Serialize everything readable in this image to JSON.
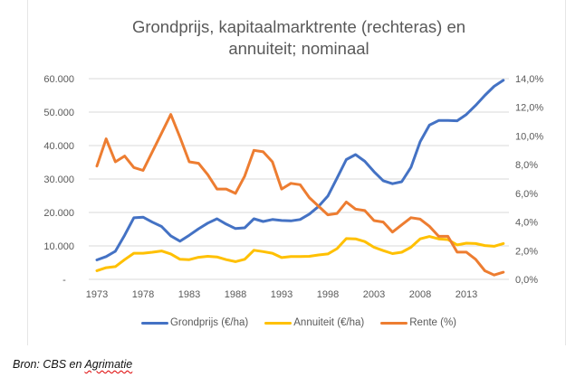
{
  "chart_data": {
    "type": "line",
    "title": "Grondprijs, kapitaalmarktrente (rechteras) en annuiteit; nominaal",
    "title_lines": [
      "Grondprijs, kapitaalmarktrente (rechteras) en",
      "annuiteit; nominaal"
    ],
    "xlabel": "",
    "ylabel": "",
    "y2label": "",
    "x": [
      1973,
      1974,
      1975,
      1976,
      1977,
      1978,
      1979,
      1980,
      1981,
      1982,
      1983,
      1984,
      1985,
      1986,
      1987,
      1988,
      1989,
      1990,
      1991,
      1992,
      1993,
      1994,
      1995,
      1996,
      1997,
      1998,
      1999,
      2000,
      2001,
      2002,
      2003,
      2004,
      2005,
      2006,
      2007,
      2008,
      2009,
      2010,
      2011,
      2012,
      2013,
      2014,
      2015,
      2016,
      2017
    ],
    "x_tick_labels": [
      "1973",
      "1978",
      "1983",
      "1988",
      "1993",
      "1998",
      "2003",
      "2008",
      "2013"
    ],
    "ylim": [
      0,
      60000
    ],
    "y_tick_labels": [
      "-",
      "10.000",
      "20.000",
      "30.000",
      "40.000",
      "50.000",
      "60.000"
    ],
    "y2lim": [
      0,
      14
    ],
    "y2_tick_labels": [
      "0,0%",
      "2,0%",
      "4,0%",
      "6,0%",
      "8,0%",
      "10,0%",
      "12,0%",
      "14,0%"
    ],
    "grid": true,
    "legend_position": "bottom",
    "series": [
      {
        "name": "Grondprijs (€/ha)",
        "axis": "left",
        "color": "#4472C4",
        "values": [
          5800,
          6800,
          8400,
          13200,
          18400,
          18600,
          17100,
          15800,
          13000,
          11400,
          13200,
          15100,
          16800,
          18100,
          16500,
          15200,
          15400,
          18100,
          17300,
          17900,
          17600,
          17500,
          17900,
          19500,
          21800,
          24900,
          30300,
          35800,
          37300,
          35300,
          32200,
          29500,
          28600,
          29200,
          33500,
          41200,
          46100,
          47500,
          47500,
          47400,
          49300,
          52000,
          55000,
          57700,
          59500
        ]
      },
      {
        "name": "Annuiteit (€/ha)",
        "axis": "left",
        "color": "#FFC000",
        "values": [
          2600,
          3500,
          3800,
          5900,
          7800,
          7800,
          8100,
          8500,
          7600,
          6000,
          5900,
          6600,
          6900,
          6700,
          5900,
          5300,
          6000,
          8700,
          8300,
          7800,
          6500,
          6800,
          6800,
          6900,
          7300,
          7600,
          9200,
          12200,
          12100,
          11300,
          9600,
          8600,
          7700,
          8100,
          9600,
          12100,
          12800,
          12100,
          11900,
          10300,
          10800,
          10700,
          10100,
          9900,
          10700
        ]
      },
      {
        "name": "Rente (%)",
        "axis": "right",
        "color": "#ED7D31",
        "values": [
          7.9,
          9.8,
          8.2,
          8.6,
          7.8,
          7.6,
          8.9,
          10.2,
          11.5,
          9.9,
          8.2,
          8.1,
          7.3,
          6.3,
          6.3,
          6.0,
          7.2,
          9.0,
          8.9,
          8.2,
          6.3,
          6.7,
          6.6,
          5.7,
          5.1,
          4.5,
          4.6,
          5.4,
          4.9,
          4.8,
          4.1,
          4.0,
          3.3,
          3.8,
          4.3,
          4.2,
          3.7,
          3.0,
          3.0,
          1.9,
          1.9,
          1.4,
          0.6,
          0.3,
          0.5
        ]
      }
    ],
    "legend": [
      "Grondprijs (€/ha)",
      "Annuiteit (€/ha)",
      "Rente (%)"
    ]
  },
  "source": {
    "prefix": "Bron: CBS en ",
    "underlined": "Agrimatie"
  }
}
